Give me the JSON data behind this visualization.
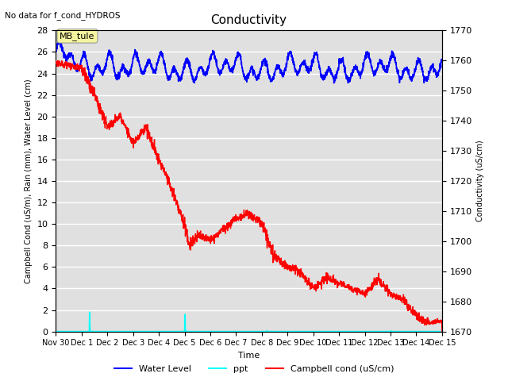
{
  "title": "Conductivity",
  "top_left_text": "No data for f_cond_HYDROS",
  "ylabel_left": "Campbell Cond (uS/m), Rain (mm), Water Level (cm)",
  "ylabel_right": "Conductivity (uS/cm)",
  "xlabel": "Time",
  "ylim_left": [
    0,
    28
  ],
  "ylim_right": [
    1670,
    1770
  ],
  "annotation_box": "MB_tule",
  "bg_color": "#e0e0e0",
  "x_ticks_labels": [
    "Nov 30",
    "Dec 1",
    "Dec 2",
    "Dec 3",
    "Dec 4",
    "Dec 5",
    "Dec 6",
    "Dec 7",
    "Dec 8",
    "Dec 9",
    "Dec 10",
    "Dec 11",
    "Dec 12",
    "Dec 13",
    "Dec 14",
    "Dec 15"
  ],
  "x_ticks_positions": [
    0,
    1,
    2,
    3,
    4,
    5,
    6,
    7,
    8,
    9,
    10,
    11,
    12,
    13,
    14,
    15
  ]
}
